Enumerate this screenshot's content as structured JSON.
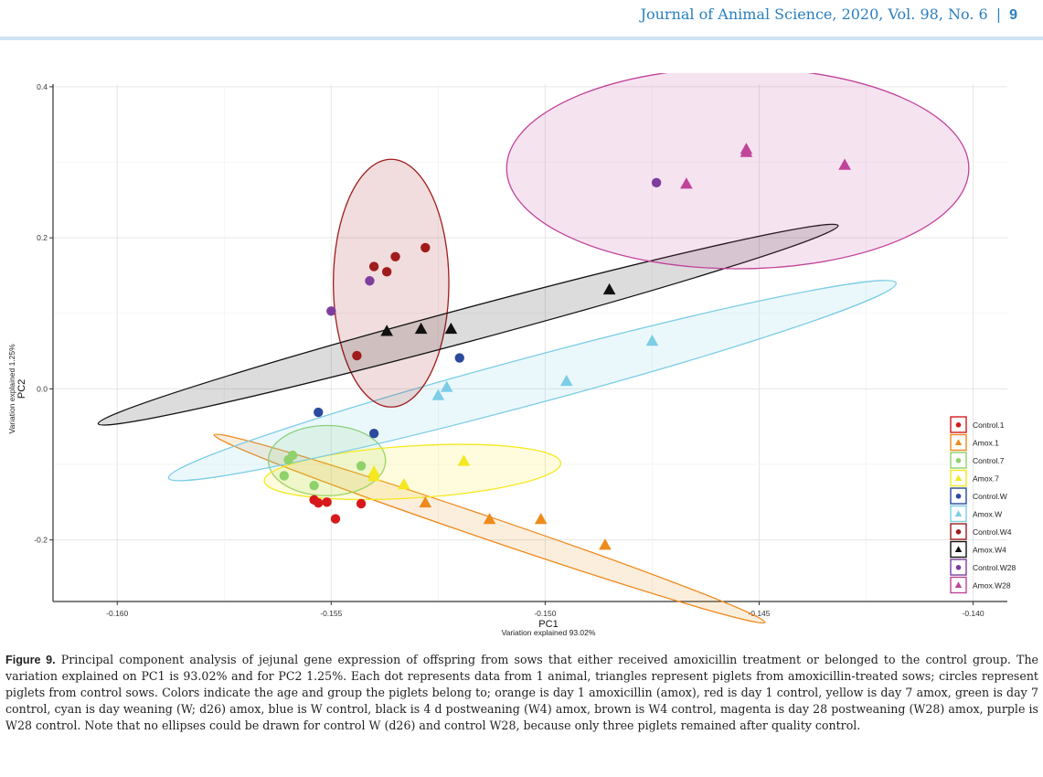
{
  "header": {
    "journal": "Journal of Animal Science, 2020, Vol. 98, No. 6",
    "separator": "|",
    "page": "9"
  },
  "caption": {
    "label": "Figure 9.",
    "text": "Principal component analysis of jejunal gene expression of offspring from sows that either received amoxicillin treatment or belonged to the control group. The variation explained on PC1 is 93.02% and for PC2 1.25%. Each dot represents data from 1 animal, triangles represent piglets from amoxicillin-treated sows; circles represent piglets from control sows. Colors indicate the age and group the piglets belong to; orange is day 1 amoxicillin (amox), red is day 1 control, yellow is day 7 amox, green is day 7 control, cyan is day weaning (W; d26) amox, blue is W control, black is 4 d postweaning (W4) amox, brown is W4 control, magenta is day 28 postweaning (W28) amox, purple is W28 control. Note that no ellipses could be drawn for control W (d26) and control W28, because only three piglets remained after quality control."
  },
  "chart_data": {
    "type": "scatter",
    "xlabel": "PC1",
    "xlabel_sub": "Variation explained 93.02%",
    "ylabel": "PC2",
    "ylabel_sub": "Variation explained 1.25%",
    "xlim": [
      -0.1615,
      -0.1392
    ],
    "ylim": [
      -0.2815,
      0.4035
    ],
    "xticks": [
      -0.16,
      -0.155,
      -0.15,
      -0.145,
      -0.14
    ],
    "xtick_labels": [
      "-0.160",
      "-0.155",
      "-0.150",
      "-0.145",
      "-0.140"
    ],
    "yticks": [
      -0.2,
      0.0,
      0.2,
      0.4
    ],
    "ytick_labels": [
      "-0.2",
      "0.0",
      "0.2",
      "0.4"
    ],
    "grid": true,
    "legend_position": "right",
    "series": [
      {
        "name": "Control.1",
        "marker": "circle",
        "color": "#d7191c",
        "points": [
          [
            -155.4,
            -0.147
          ],
          [
            -155.3,
            -0.151
          ],
          [
            -155.1,
            -0.15
          ],
          [
            -154.9,
            -0.172
          ],
          [
            -154.3,
            -0.152
          ]
        ]
      },
      {
        "name": "Amox.1",
        "marker": "triangle",
        "color": "#ee8a1c",
        "ellipse": {
          "cx": -151.3,
          "cy": -0.185,
          "rx": 0.0068,
          "ry": 0.0148,
          "angle": 18.8
        },
        "points": [
          [
            -152.8,
            -0.151
          ],
          [
            -151.3,
            -0.173
          ],
          [
            -150.1,
            -0.173
          ],
          [
            -148.6,
            -0.207
          ]
        ]
      },
      {
        "name": "Control.7",
        "marker": "circle",
        "color": "#8fd16b",
        "ellipse": {
          "cx": -155.1,
          "cy": -0.095,
          "rx": 0.00137,
          "ry": 0.0465,
          "angle": 0
        },
        "points": [
          [
            -156.0,
            -0.094
          ],
          [
            -155.9,
            -0.088
          ],
          [
            -156.1,
            -0.115
          ],
          [
            -155.4,
            -0.128
          ],
          [
            -154.3,
            -0.102
          ]
        ]
      },
      {
        "name": "Amox.7",
        "marker": "triangle",
        "color": "#f5e81e",
        "ellipse": {
          "cx": -153.1,
          "cy": -0.11,
          "rx": 0.00347,
          "ry": 0.0345,
          "angle": -3.5
        },
        "points": [
          [
            -154.0,
            -0.11
          ],
          [
            -154.0,
            -0.116
          ],
          [
            -153.3,
            -0.127
          ],
          [
            -151.9,
            -0.096
          ]
        ]
      },
      {
        "name": "Control.W",
        "marker": "circle",
        "color": "#2c4a9e",
        "points": [
          [
            -155.3,
            -0.031
          ],
          [
            -154.0,
            -0.059
          ],
          [
            -152.0,
            0.041
          ]
        ]
      },
      {
        "name": "Amox.W",
        "marker": "triangle",
        "color": "#7ccde6",
        "ellipse": {
          "cx": -150.3,
          "cy": 0.011,
          "rx": 0.0088,
          "ry": 0.031,
          "angle": -15.0
        },
        "points": [
          [
            -152.5,
            -0.009
          ],
          [
            -152.3,
            0.002
          ],
          [
            -149.5,
            0.01
          ],
          [
            -147.5,
            0.063
          ]
        ]
      },
      {
        "name": "Control.W4",
        "marker": "circle",
        "color": "#a01c1c",
        "ellipse": {
          "cx": -153.6,
          "cy": 0.14,
          "rx": 0.00135,
          "ry": 0.164,
          "angle": 0
        },
        "points": [
          [
            -154.4,
            0.044
          ],
          [
            -154.0,
            0.162
          ],
          [
            -153.7,
            0.155
          ],
          [
            -153.5,
            0.175
          ],
          [
            -152.8,
            0.187
          ]
        ]
      },
      {
        "name": "Amox.W4",
        "marker": "triangle",
        "color": "#111111",
        "ellipse": {
          "cx": -151.8,
          "cy": 0.085,
          "rx": 0.00895,
          "ry": 0.022,
          "angle": -15.0
        },
        "points": [
          [
            -153.7,
            0.076
          ],
          [
            -152.9,
            0.079
          ],
          [
            -152.2,
            0.079
          ],
          [
            -148.5,
            0.131
          ]
        ]
      },
      {
        "name": "Control.W28",
        "marker": "circle",
        "color": "#7d3e9e",
        "points": [
          [
            -155.0,
            0.103
          ],
          [
            -154.1,
            0.143
          ],
          [
            -147.4,
            0.273
          ]
        ]
      },
      {
        "name": "Amox.W28",
        "marker": "triangle",
        "color": "#c0449a",
        "ellipse": {
          "cx": -145.5,
          "cy": 0.292,
          "rx": 0.0054,
          "ry": 0.133,
          "angle": 0
        },
        "points": [
          [
            -146.7,
            0.271
          ],
          [
            -145.3,
            0.317
          ],
          [
            -145.3,
            0.313
          ],
          [
            -143.0,
            0.296
          ]
        ]
      }
    ]
  }
}
